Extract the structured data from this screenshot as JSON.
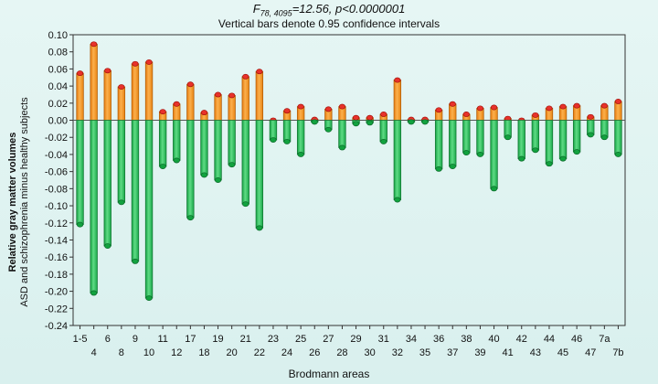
{
  "chart_data": {
    "type": "bar",
    "title_main": "F",
    "title_sub": "78, 4095",
    "title_rest": "=12.56, p<0.0000001",
    "subtitle": "Vertical bars denote 0.95 confidence intervals",
    "ylabel_line1": "Relative gray matter volumes",
    "ylabel_line2": "ASD and schizophrenia minus healthy subjects",
    "xlabel": "Brodmann areas",
    "ylim": [
      -0.24,
      0.1
    ],
    "yticks": [
      "0.10",
      "0.08",
      "0.06",
      "0.04",
      "0.02",
      "0.00",
      "-0.02",
      "-0.04",
      "-0.06",
      "-0.08",
      "-0.10",
      "-0.12",
      "-0.14",
      "-0.16",
      "-0.18",
      "-0.20",
      "-0.22",
      "-0.24"
    ],
    "categories": [
      "1-5",
      "4",
      "6",
      "8",
      "9",
      "10",
      "11",
      "12",
      "17",
      "18",
      "19",
      "20",
      "21",
      "22",
      "23",
      "24",
      "25",
      "26",
      "27",
      "28",
      "29",
      "30",
      "31",
      "32",
      "34",
      "35",
      "36",
      "37",
      "38",
      "39",
      "40",
      "41",
      "42",
      "43",
      "44",
      "45",
      "46",
      "47",
      "7a",
      "7b"
    ],
    "xticks_top": [
      "1-5",
      "6",
      "9",
      "11",
      "17",
      "19",
      "21",
      "23",
      "25",
      "27",
      "29",
      "31",
      "34",
      "36",
      "38",
      "40",
      "42",
      "44",
      "46",
      "7a"
    ],
    "xticks_bottom": [
      "4",
      "8",
      "10",
      "12",
      "18",
      "20",
      "22",
      "24",
      "26",
      "28",
      "30",
      "32",
      "35",
      "37",
      "39",
      "41",
      "43",
      "45",
      "47",
      "7b"
    ],
    "series": [
      {
        "color": "#f7951e",
        "values": [
          0.055,
          0.089,
          0.058,
          0.039,
          0.066,
          0.068,
          0.01,
          0.019,
          0.042,
          0.009,
          0.03,
          0.029,
          0.051,
          0.057,
          0.0,
          0.011,
          0.016,
          0.001,
          0.013,
          0.016,
          0.003,
          0.003,
          0.007,
          0.047,
          0.001,
          0.001,
          0.012,
          0.019,
          0.007,
          0.014,
          0.015,
          0.002,
          0.0,
          0.006,
          0.014,
          0.016,
          0.017,
          0.004,
          0.017,
          0.022
        ]
      },
      {
        "color": "#2fbe5a",
        "values": [
          -0.122,
          -0.202,
          -0.147,
          -0.096,
          -0.165,
          -0.208,
          -0.054,
          -0.047,
          -0.114,
          -0.064,
          -0.07,
          -0.052,
          -0.098,
          -0.126,
          -0.023,
          -0.025,
          -0.04,
          -0.002,
          -0.011,
          -0.032,
          -0.004,
          -0.003,
          -0.025,
          -0.093,
          -0.002,
          -0.002,
          -0.057,
          -0.054,
          -0.038,
          -0.04,
          -0.08,
          -0.02,
          -0.045,
          -0.035,
          -0.051,
          -0.045,
          -0.037,
          -0.017,
          -0.02,
          -0.04
        ]
      }
    ]
  }
}
